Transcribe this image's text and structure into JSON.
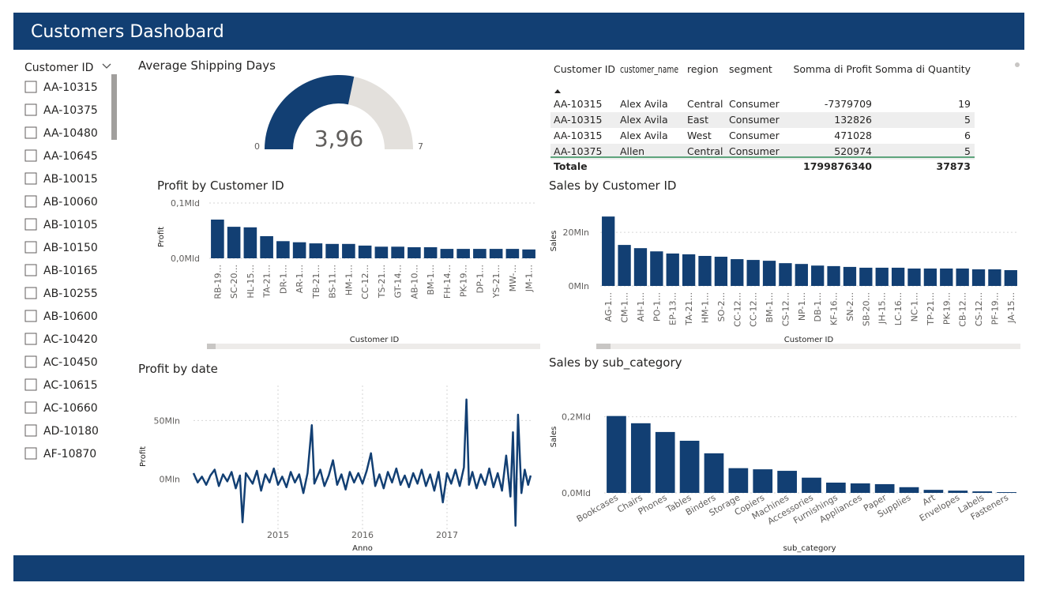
{
  "header": {
    "title": "Customers Dashobard"
  },
  "slicer": {
    "title": "Customer ID",
    "items": [
      "AA-10315",
      "AA-10375",
      "AA-10480",
      "AA-10645",
      "AB-10015",
      "AB-10060",
      "AB-10105",
      "AB-10150",
      "AB-10165",
      "AB-10255",
      "AB-10600",
      "AC-10420",
      "AC-10450",
      "AC-10615",
      "AC-10660",
      "AD-10180",
      "AF-10870"
    ]
  },
  "table": {
    "columns": [
      "Customer ID",
      "customer_name",
      "region",
      "segment",
      "Somma di Profit",
      "Somma di Quantity"
    ],
    "rows": [
      [
        "AA-10315",
        "Alex Avila",
        "Central",
        "Consumer",
        -7379709,
        19
      ],
      [
        "AA-10315",
        "Alex Avila",
        "East",
        "Consumer",
        132826,
        5
      ],
      [
        "AA-10315",
        "Alex Avila",
        "West",
        "Consumer",
        471028,
        6
      ],
      [
        "AA-10375",
        "Allen",
        "Central",
        "Consumer",
        520974,
        5
      ]
    ],
    "total": [
      "Totale",
      1799876340,
      37873
    ]
  },
  "chart_data": [
    {
      "type": "gauge",
      "title": "Average Shipping Days",
      "value": 3.96,
      "value_label": "3,96",
      "min": 0,
      "max": 7,
      "color": "#123f73",
      "track_color": "#e3e0dc"
    },
    {
      "type": "bar",
      "title": "Profit by Customer ID",
      "x_label": "Customer ID",
      "y_label": "Profit",
      "color": "#123f73",
      "categories": [
        "RB-19...",
        "SC-20...",
        "HL-15...",
        "TA-21...",
        "DR-1...",
        "AR-1...",
        "TB-21...",
        "BS-11...",
        "HM-1...",
        "CC-12...",
        "TS-21...",
        "GT-14...",
        "AB-10...",
        "BM-1...",
        "FH-14...",
        "PK-19...",
        "DP-1...",
        "YS-21...",
        "MW-...",
        "JM-1..."
      ],
      "values": [
        0.07,
        0.057,
        0.056,
        0.04,
        0.031,
        0.029,
        0.027,
        0.026,
        0.026,
        0.023,
        0.021,
        0.021,
        0.02,
        0.02,
        0.017,
        0.017,
        0.017,
        0.017,
        0.017,
        0.016
      ],
      "ylim": [
        0,
        0.11
      ],
      "yticks": [
        {
          "value": 0,
          "label": "0,0Mld"
        },
        {
          "value": 0.1,
          "label": "0,1Mld"
        }
      ],
      "label_rotation": -90
    },
    {
      "type": "bar",
      "title": "Sales by Customer ID",
      "x_label": "Customer ID",
      "y_label": "Sales",
      "color": "#123f73",
      "categories": [
        "AG-1...",
        "CM-1...",
        "AH-1...",
        "PO-1...",
        "EP-13...",
        "TA-21...",
        "HM-1...",
        "SO-2...",
        "CC-12...",
        "CC-12...",
        "BM-1...",
        "CS-12...",
        "NP-1...",
        "DB-1...",
        "KF-16...",
        "SN-2...",
        "SB-20...",
        "JH-15...",
        "LC-16...",
        "NC-1...",
        "TP-21...",
        "PK-19...",
        "CB-12...",
        "CS-12...",
        "PF-19...",
        "JA-15..."
      ],
      "values": [
        25.9,
        15.3,
        14.1,
        12.9,
        12.1,
        11.8,
        11.2,
        10.9,
        10.0,
        9.7,
        9.4,
        8.5,
        8.2,
        7.6,
        7.4,
        7.1,
        6.8,
        6.8,
        6.8,
        6.5,
        6.5,
        6.5,
        6.5,
        6.2,
        6.2,
        5.9
      ],
      "ylim": [
        0,
        28
      ],
      "yticks": [
        {
          "value": 0,
          "label": "0Mln"
        },
        {
          "value": 20,
          "label": "20Mln"
        }
      ],
      "label_rotation": -90
    },
    {
      "type": "line",
      "title": "Profit by date",
      "x_label": "Anno",
      "y_label": "Profit",
      "color": "#123f73",
      "x": [
        2014.0,
        2014.05,
        2014.1,
        2014.15,
        2014.2,
        2014.25,
        2014.3,
        2014.35,
        2014.4,
        2014.45,
        2014.5,
        2014.55,
        2014.58,
        2014.62,
        2014.7,
        2014.75,
        2014.8,
        2014.85,
        2014.9,
        2014.95,
        2015.0,
        2015.05,
        2015.1,
        2015.15,
        2015.2,
        2015.25,
        2015.3,
        2015.35,
        2015.4,
        2015.43,
        2015.5,
        2015.55,
        2015.6,
        2015.65,
        2015.7,
        2015.75,
        2015.8,
        2015.85,
        2015.9,
        2015.95,
        2016.0,
        2016.05,
        2016.1,
        2016.15,
        2016.2,
        2016.25,
        2016.3,
        2016.35,
        2016.4,
        2016.45,
        2016.5,
        2016.55,
        2016.6,
        2016.65,
        2016.7,
        2016.75,
        2016.8,
        2016.85,
        2016.9,
        2016.95,
        2017.0,
        2017.05,
        2017.1,
        2017.15,
        2017.2,
        2017.23,
        2017.26,
        2017.3,
        2017.35,
        2017.4,
        2017.45,
        2017.5,
        2017.55,
        2017.6,
        2017.65,
        2017.7,
        2017.75,
        2017.78,
        2017.81,
        2017.84,
        2017.88,
        2017.92,
        2017.96,
        2017.99
      ],
      "values": [
        5,
        -3,
        2,
        -5,
        3,
        8,
        -6,
        4,
        -2,
        6,
        -8,
        3,
        -37,
        5,
        -4,
        7,
        -10,
        4,
        -3,
        9,
        -5,
        2,
        -7,
        6,
        -3,
        4,
        -12,
        5,
        46,
        -4,
        8,
        -6,
        3,
        16,
        -5,
        4,
        -9,
        6,
        -3,
        5,
        -4,
        7,
        22,
        -6,
        4,
        -8,
        6,
        -3,
        9,
        -5,
        3,
        -7,
        5,
        -4,
        8,
        -6,
        4,
        -10,
        6,
        -20,
        5,
        -4,
        8,
        -6,
        10,
        68,
        -5,
        6,
        -8,
        4,
        -5,
        9,
        -7,
        5,
        -10,
        20,
        -15,
        40,
        -40,
        55,
        -12,
        8,
        -5,
        3
      ],
      "xlim": [
        2014,
        2018
      ],
      "xticks": [
        2015,
        2016,
        2017
      ],
      "ylim": [
        -45,
        80
      ],
      "yticks": [
        {
          "value": 0,
          "label": "0Mln"
        },
        {
          "value": 50,
          "label": "50Mln"
        }
      ]
    },
    {
      "type": "bar",
      "title": "Sales by sub_category",
      "x_label": "sub_category",
      "y_label": "Sales",
      "color": "#123f73",
      "categories": [
        "Bookcases",
        "Chairs",
        "Phones",
        "Tables",
        "Binders",
        "Storage",
        "Copiers",
        "Machines",
        "Accessories",
        "Furnishings",
        "Appliances",
        "Paper",
        "Supplies",
        "Art",
        "Envelopes",
        "Labels",
        "Fasteners"
      ],
      "values": [
        0.202,
        0.183,
        0.16,
        0.137,
        0.104,
        0.065,
        0.062,
        0.058,
        0.04,
        0.027,
        0.025,
        0.023,
        0.015,
        0.008,
        0.006,
        0.004,
        0.002
      ],
      "ylim": [
        0,
        0.22
      ],
      "yticks": [
        {
          "value": 0,
          "label": "0,0Mld"
        },
        {
          "value": 0.2,
          "label": "0,2Mld"
        }
      ],
      "label_rotation": -30
    }
  ]
}
